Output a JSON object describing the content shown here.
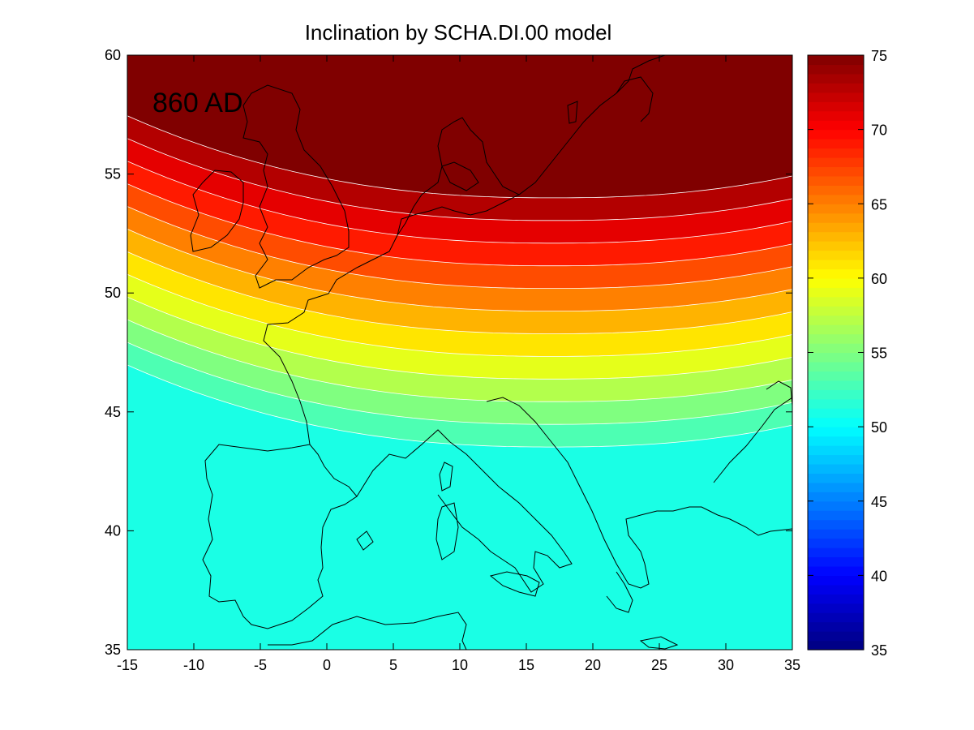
{
  "chart_data": {
    "type": "heatmap",
    "title": "Inclination by SCHA.DI.00 model",
    "annotation": "860 AD",
    "x_ticks": [
      "-15",
      "-10",
      "-5",
      "0",
      "5",
      "10",
      "15",
      "20",
      "25",
      "30",
      "35"
    ],
    "y_ticks": [
      "60",
      "55",
      "50",
      "45",
      "40",
      "35"
    ],
    "xlim": [
      -15,
      35
    ],
    "ylim": [
      35,
      60
    ],
    "colorbar": {
      "ticks": [
        "75",
        "70",
        "65",
        "60",
        "55",
        "50",
        "45",
        "40",
        "35"
      ],
      "range": [
        35,
        75
      ],
      "colormap": "jet"
    },
    "contour_levels": [
      52,
      54,
      56,
      58,
      60,
      62,
      64,
      66,
      68,
      70,
      72,
      74
    ]
  }
}
